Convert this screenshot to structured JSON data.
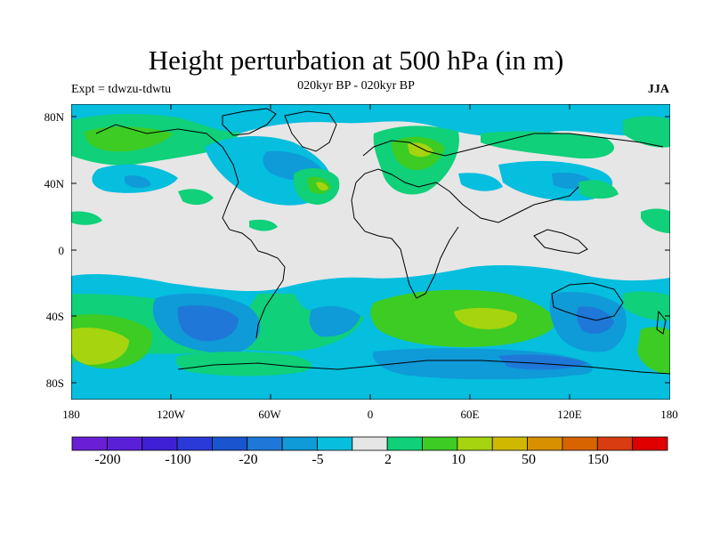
{
  "title": "Height perturbation at 500 hPa (in m)",
  "subtitle": "020kyr BP - 020kyr BP",
  "experiment": "Expt = tdwzu-tdwtu",
  "season": "JJA",
  "axes": {
    "y_ticks": [
      "80N",
      "40N",
      "0",
      "40S",
      "80S"
    ],
    "x_ticks": [
      "180",
      "120W",
      "60W",
      "0",
      "60E",
      "120E",
      "180"
    ]
  },
  "colorbar": {
    "colors": [
      "#6a1fd6",
      "#5a20d8",
      "#4020d6",
      "#2a3ad8",
      "#1a55d0",
      "#1f78d8",
      "#0f9ad8",
      "#06bede",
      "#e6e6e6",
      "#10d07a",
      "#3ccc24",
      "#a6d40e",
      "#d0b800",
      "#d89000",
      "#d86400",
      "#d83c10",
      "#e00000"
    ],
    "labels": [
      "-200",
      "-100",
      "-20",
      "-5",
      "2",
      "10",
      "50",
      "150"
    ]
  }
}
